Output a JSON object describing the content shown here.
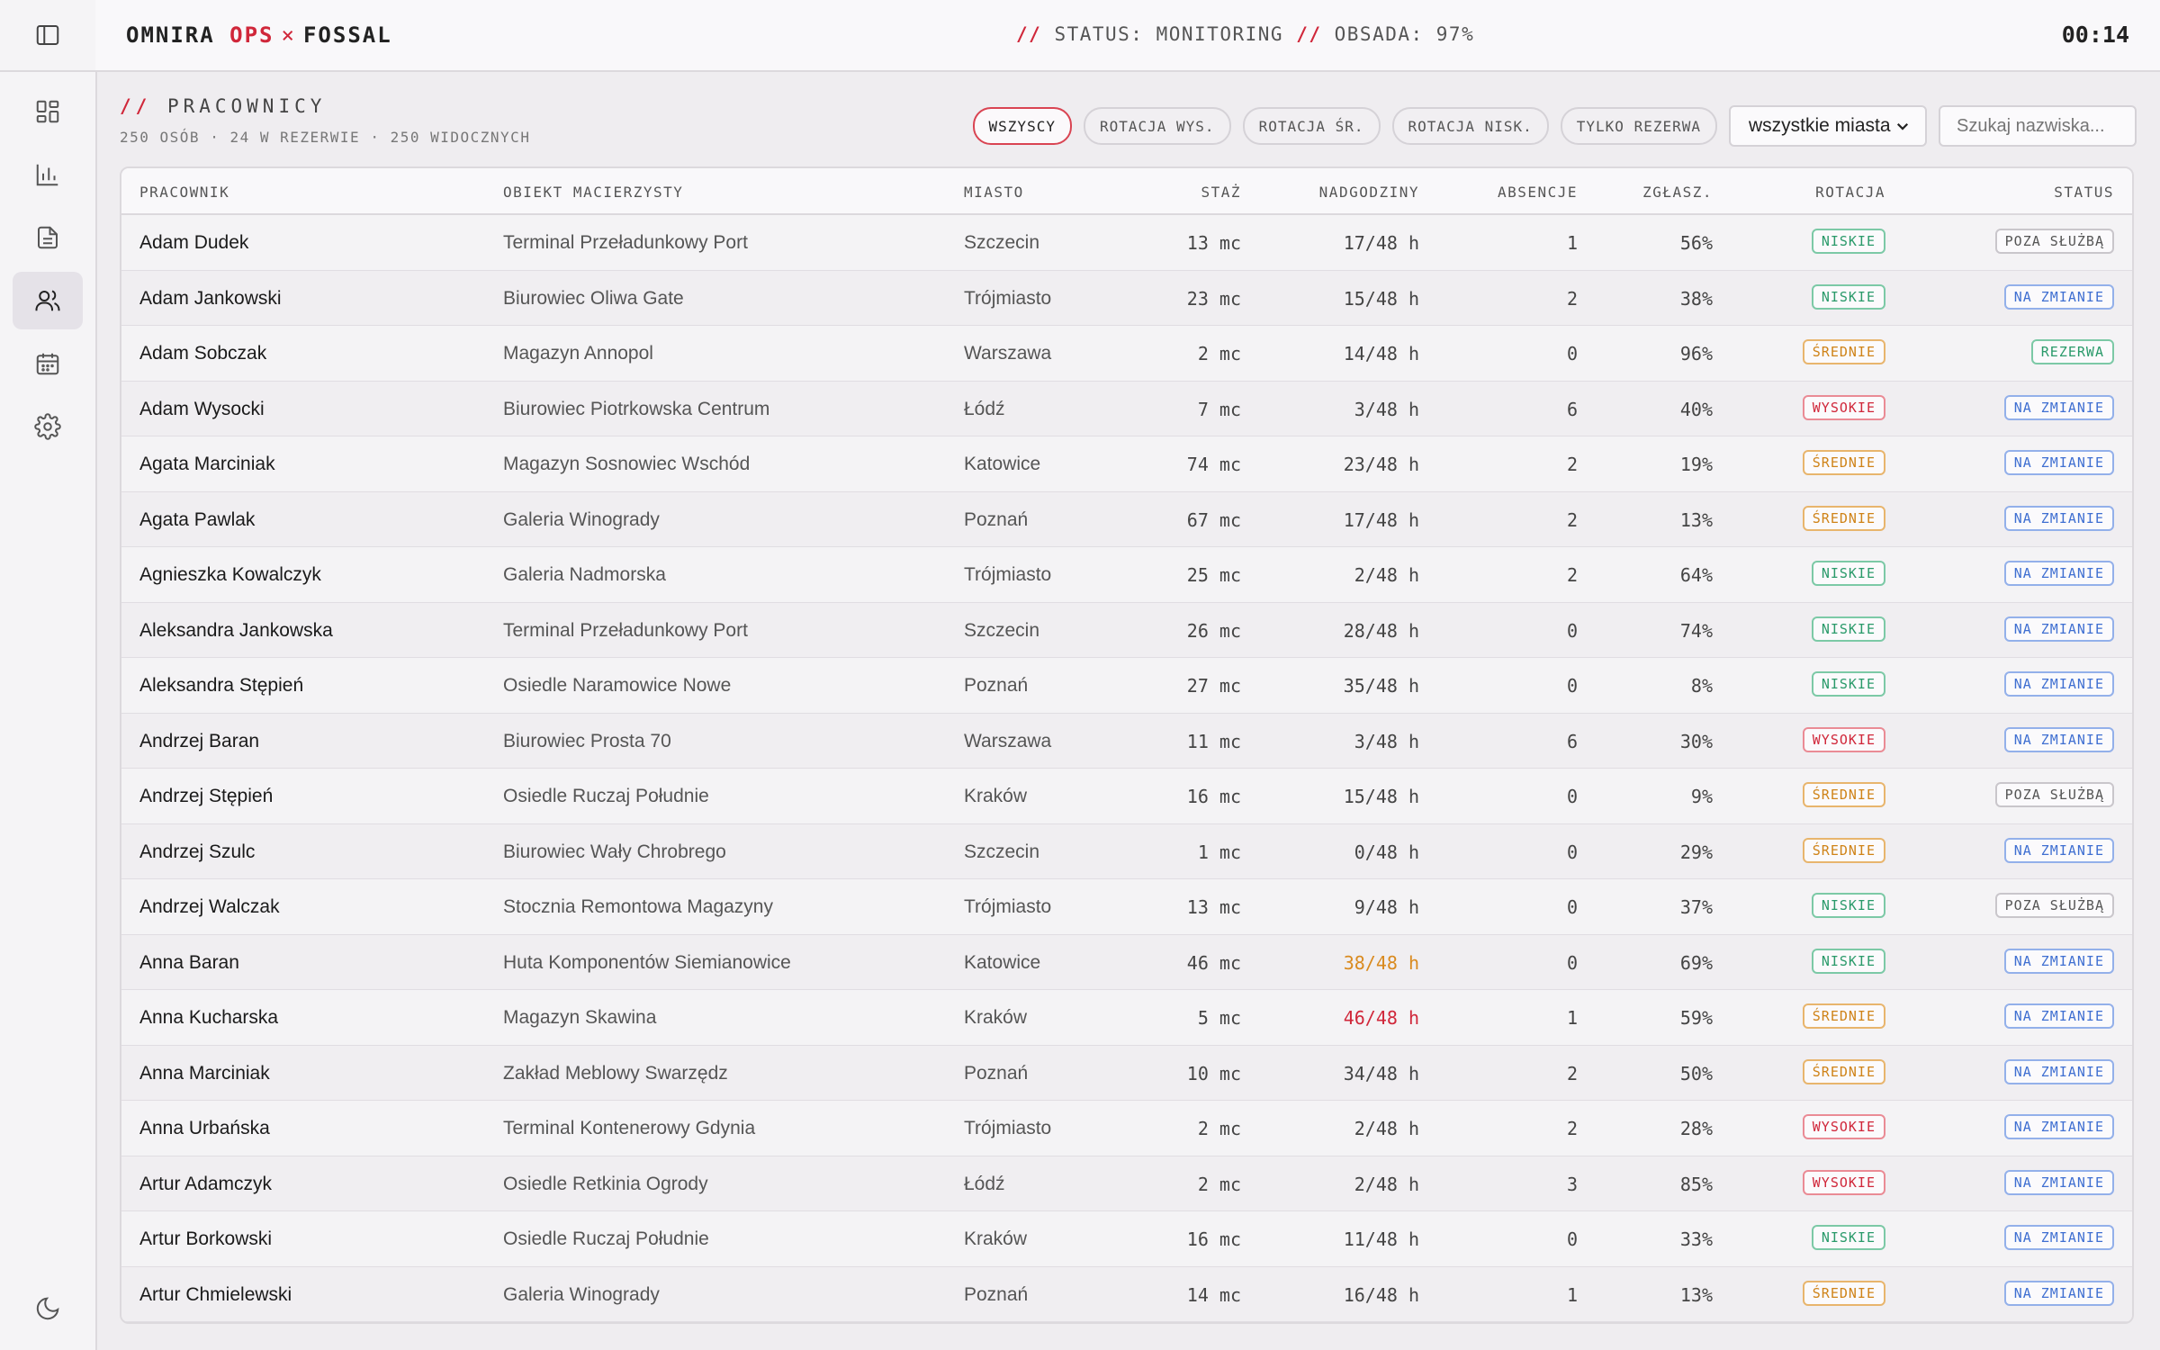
{
  "header": {
    "brand_a": "OMNIRA",
    "brand_b": "OPS",
    "brand_x": "×",
    "brand_c": "FOSSAL",
    "status_slash": "//",
    "status_label": "STATUS: MONITORING",
    "staff_label": "OBSADA: 97%",
    "clock": "00:14"
  },
  "sidebar": {
    "items": [
      "dashboard-icon",
      "chart-icon",
      "document-icon",
      "users-icon",
      "calendar-icon",
      "settings-icon"
    ],
    "active": "users-icon",
    "toggle_icon": "sidebar-toggle-icon",
    "theme_icon": "moon-icon"
  },
  "section": {
    "slash": "//",
    "title": "PRACOWNICY",
    "subtitle": "250 OSÓB · 24 W REZERWIE · 250 WIDOCZNYCH"
  },
  "filters": {
    "chips": [
      "WSZYSCY",
      "ROTACJA WYS.",
      "ROTACJA ŚR.",
      "ROTACJA NISK.",
      "TYLKO REZERWA"
    ],
    "active": "WSZYSCY",
    "city_select": "wszystkie miasta",
    "search_placeholder": "Szukaj nazwiska..."
  },
  "table": {
    "columns": [
      "PRACOWNIK",
      "OBIEKT MACIERZYSTY",
      "MIASTO",
      "STAŻ",
      "NADGODZINY",
      "ABSENCJE",
      "ZGŁASZ.",
      "ROTACJA",
      "STATUS"
    ],
    "rows": [
      {
        "name": "Adam Dudek",
        "obj": "Terminal Przeładunkowy Port",
        "city": "Szczecin",
        "staz": "13 mc",
        "ot": "17/48 h",
        "ot_level": "normal",
        "abs": "1",
        "rep": "56%",
        "rot": "NISKIE",
        "status": "POZA SŁUŻBĄ"
      },
      {
        "name": "Adam Jankowski",
        "obj": "Biurowiec Oliwa Gate",
        "city": "Trójmiasto",
        "staz": "23 mc",
        "ot": "15/48 h",
        "ot_level": "normal",
        "abs": "2",
        "rep": "38%",
        "rot": "NISKIE",
        "status": "NA ZMIANIE"
      },
      {
        "name": "Adam Sobczak",
        "obj": "Magazyn Annopol",
        "city": "Warszawa",
        "staz": "2 mc",
        "ot": "14/48 h",
        "ot_level": "normal",
        "abs": "0",
        "rep": "96%",
        "rot": "ŚREDNIE",
        "status": "REZERWA"
      },
      {
        "name": "Adam Wysocki",
        "obj": "Biurowiec Piotrkowska Centrum",
        "city": "Łódź",
        "staz": "7 mc",
        "ot": "3/48 h",
        "ot_level": "normal",
        "abs": "6",
        "rep": "40%",
        "rot": "WYSOKIE",
        "status": "NA ZMIANIE"
      },
      {
        "name": "Agata Marciniak",
        "obj": "Magazyn Sosnowiec Wschód",
        "city": "Katowice",
        "staz": "74 mc",
        "ot": "23/48 h",
        "ot_level": "normal",
        "abs": "2",
        "rep": "19%",
        "rot": "ŚREDNIE",
        "status": "NA ZMIANIE"
      },
      {
        "name": "Agata Pawlak",
        "obj": "Galeria Winogrady",
        "city": "Poznań",
        "staz": "67 mc",
        "ot": "17/48 h",
        "ot_level": "normal",
        "abs": "2",
        "rep": "13%",
        "rot": "ŚREDNIE",
        "status": "NA ZMIANIE"
      },
      {
        "name": "Agnieszka Kowalczyk",
        "obj": "Galeria Nadmorska",
        "city": "Trójmiasto",
        "staz": "25 mc",
        "ot": "2/48 h",
        "ot_level": "normal",
        "abs": "2",
        "rep": "64%",
        "rot": "NISKIE",
        "status": "NA ZMIANIE"
      },
      {
        "name": "Aleksandra Jankowska",
        "obj": "Terminal Przeładunkowy Port",
        "city": "Szczecin",
        "staz": "26 mc",
        "ot": "28/48 h",
        "ot_level": "normal",
        "abs": "0",
        "rep": "74%",
        "rot": "NISKIE",
        "status": "NA ZMIANIE"
      },
      {
        "name": "Aleksandra Stępień",
        "obj": "Osiedle Naramowice Nowe",
        "city": "Poznań",
        "staz": "27 mc",
        "ot": "35/48 h",
        "ot_level": "normal",
        "abs": "0",
        "rep": "8%",
        "rot": "NISKIE",
        "status": "NA ZMIANIE"
      },
      {
        "name": "Andrzej Baran",
        "obj": "Biurowiec Prosta 70",
        "city": "Warszawa",
        "staz": "11 mc",
        "ot": "3/48 h",
        "ot_level": "normal",
        "abs": "6",
        "rep": "30%",
        "rot": "WYSOKIE",
        "status": "NA ZMIANIE"
      },
      {
        "name": "Andrzej Stępień",
        "obj": "Osiedle Ruczaj Południe",
        "city": "Kraków",
        "staz": "16 mc",
        "ot": "15/48 h",
        "ot_level": "normal",
        "abs": "0",
        "rep": "9%",
        "rot": "ŚREDNIE",
        "status": "POZA SŁUŻBĄ"
      },
      {
        "name": "Andrzej Szulc",
        "obj": "Biurowiec Wały Chrobrego",
        "city": "Szczecin",
        "staz": "1 mc",
        "ot": "0/48 h",
        "ot_level": "normal",
        "abs": "0",
        "rep": "29%",
        "rot": "ŚREDNIE",
        "status": "NA ZMIANIE"
      },
      {
        "name": "Andrzej Walczak",
        "obj": "Stocznia Remontowa Magazyny",
        "city": "Trójmiasto",
        "staz": "13 mc",
        "ot": "9/48 h",
        "ot_level": "normal",
        "abs": "0",
        "rep": "37%",
        "rot": "NISKIE",
        "status": "POZA SŁUŻBĄ"
      },
      {
        "name": "Anna Baran",
        "obj": "Huta Komponentów Siemianowice",
        "city": "Katowice",
        "staz": "46 mc",
        "ot": "38/48 h",
        "ot_level": "warn",
        "abs": "0",
        "rep": "69%",
        "rot": "NISKIE",
        "status": "NA ZMIANIE"
      },
      {
        "name": "Anna Kucharska",
        "obj": "Magazyn Skawina",
        "city": "Kraków",
        "staz": "5 mc",
        "ot": "46/48 h",
        "ot_level": "crit",
        "abs": "1",
        "rep": "59%",
        "rot": "ŚREDNIE",
        "status": "NA ZMIANIE"
      },
      {
        "name": "Anna Marciniak",
        "obj": "Zakład Meblowy Swarzędz",
        "city": "Poznań",
        "staz": "10 mc",
        "ot": "34/48 h",
        "ot_level": "normal",
        "abs": "2",
        "rep": "50%",
        "rot": "ŚREDNIE",
        "status": "NA ZMIANIE"
      },
      {
        "name": "Anna Urbańska",
        "obj": "Terminal Kontenerowy Gdynia",
        "city": "Trójmiasto",
        "staz": "2 mc",
        "ot": "2/48 h",
        "ot_level": "normal",
        "abs": "2",
        "rep": "28%",
        "rot": "WYSOKIE",
        "status": "NA ZMIANIE"
      },
      {
        "name": "Artur Adamczyk",
        "obj": "Osiedle Retkinia Ogrody",
        "city": "Łódź",
        "staz": "2 mc",
        "ot": "2/48 h",
        "ot_level": "normal",
        "abs": "3",
        "rep": "85%",
        "rot": "WYSOKIE",
        "status": "NA ZMIANIE"
      },
      {
        "name": "Artur Borkowski",
        "obj": "Osiedle Ruczaj Południe",
        "city": "Kraków",
        "staz": "16 mc",
        "ot": "11/48 h",
        "ot_level": "normal",
        "abs": "0",
        "rep": "33%",
        "rot": "NISKIE",
        "status": "NA ZMIANIE"
      },
      {
        "name": "Artur Chmielewski",
        "obj": "Galeria Winogrady",
        "city": "Poznań",
        "staz": "14 mc",
        "ot": "16/48 h",
        "ot_level": "normal",
        "abs": "1",
        "rep": "13%",
        "rot": "ŚREDNIE",
        "status": "NA ZMIANIE"
      }
    ]
  },
  "colors": {
    "accent": "#d0273a",
    "niskie": "#2a9a6a",
    "srednie": "#cf8318",
    "wysokie": "#d0273a",
    "na_zmianie": "#3f6fd1"
  }
}
